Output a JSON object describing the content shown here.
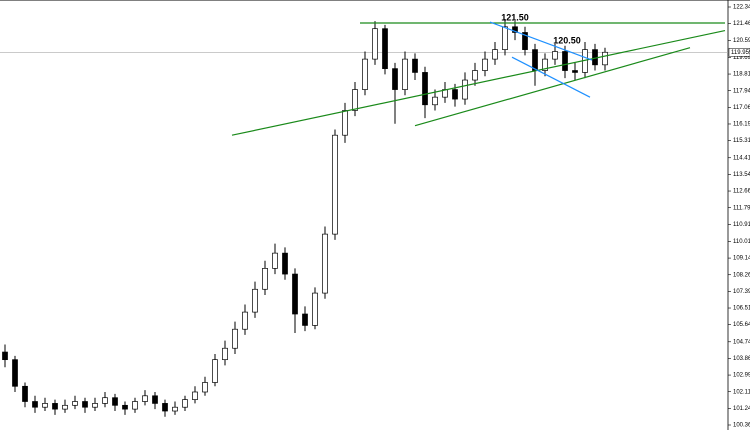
{
  "chart_data": {
    "type": "candlestick",
    "color": "#000000",
    "open": [
      104.2,
      103.8,
      102.4,
      101.6,
      101.3,
      101.5,
      101.2,
      101.4,
      101.6,
      101.3,
      101.5,
      101.8,
      101.4,
      101.2,
      101.6,
      101.9,
      101.5,
      101.1,
      101.3,
      101.7,
      102.1,
      102.6,
      103.8,
      104.4,
      105.4,
      106.3,
      107.5,
      108.6,
      109.4,
      108.3,
      106.2,
      105.6,
      107.3,
      110.4,
      115.6,
      116.9,
      118.0,
      119.6,
      121.2,
      119.1,
      118.0,
      119.6,
      118.9,
      117.2,
      117.6,
      118.0,
      117.5,
      118.5,
      119.0,
      119.6,
      120.1,
      121.3,
      121.0,
      120.1,
      119.0,
      119.6,
      120.0,
      119.0,
      118.9,
      120.1,
      119.3
    ],
    "high": [
      104.6,
      104.0,
      102.6,
      101.9,
      101.8,
      101.7,
      101.7,
      101.9,
      101.8,
      101.8,
      102.1,
      102.0,
      101.6,
      101.8,
      102.2,
      102.1,
      101.7,
      101.6,
      101.9,
      102.4,
      102.9,
      104.1,
      104.8,
      105.8,
      106.7,
      107.9,
      109.0,
      109.9,
      109.7,
      108.6,
      106.6,
      107.6,
      110.8,
      115.9,
      117.3,
      118.4,
      120.0,
      121.6,
      121.4,
      119.4,
      120.0,
      119.9,
      119.2,
      118.0,
      118.4,
      118.3,
      118.9,
      119.4,
      120.0,
      120.5,
      121.7,
      121.6,
      121.3,
      120.4,
      119.9,
      120.4,
      120.3,
      119.4,
      120.5,
      120.4,
      120.2
    ],
    "low": [
      103.4,
      102.1,
      101.3,
      101.0,
      101.1,
      100.9,
      101.0,
      101.2,
      101.0,
      101.1,
      101.3,
      101.1,
      100.9,
      101.0,
      101.4,
      101.2,
      100.8,
      100.9,
      101.1,
      101.5,
      101.9,
      102.4,
      103.5,
      104.1,
      105.1,
      106.0,
      107.2,
      108.3,
      108.0,
      105.2,
      105.3,
      105.4,
      107.0,
      110.1,
      115.2,
      116.6,
      117.7,
      119.3,
      118.8,
      116.2,
      117.7,
      118.5,
      116.5,
      116.9,
      117.3,
      117.1,
      117.2,
      118.2,
      118.7,
      119.3,
      119.8,
      120.6,
      119.8,
      118.2,
      118.7,
      119.3,
      118.6,
      118.5,
      118.6,
      119.0,
      119.0
    ],
    "close": [
      103.8,
      102.4,
      101.6,
      101.3,
      101.5,
      101.2,
      101.4,
      101.6,
      101.3,
      101.5,
      101.8,
      101.4,
      101.2,
      101.6,
      101.9,
      101.5,
      101.1,
      101.3,
      101.7,
      102.1,
      102.6,
      103.8,
      104.4,
      105.4,
      106.3,
      107.5,
      108.6,
      109.4,
      108.3,
      106.2,
      105.6,
      107.3,
      110.4,
      115.6,
      116.9,
      118.0,
      119.6,
      121.2,
      119.1,
      118.0,
      119.6,
      118.9,
      117.2,
      117.6,
      118.0,
      117.5,
      118.5,
      119.0,
      119.6,
      120.1,
      121.3,
      121.0,
      120.1,
      119.0,
      119.6,
      120.0,
      119.0,
      118.9,
      120.1,
      119.3,
      119.96
    ],
    "ylim": [
      100.365,
      122.34
    ],
    "yticks": [
      {
        "value": 122.34,
        "label": "122.340"
      },
      121.465,
      {
        "value": 120.59,
        "label": "120.590"
      },
      {
        "value": 119.69,
        "label": "119.690"
      },
      118.815,
      {
        "value": 117.94,
        "label": "117.940"
      },
      117.065,
      {
        "value": 116.19,
        "label": "116.190"
      },
      115.315,
      114.415,
      {
        "value": 113.54,
        "label": "113.540"
      },
      112.665,
      {
        "value": 111.79,
        "label": "111.790"
      },
      110.915,
      110.015,
      {
        "value": 109.14,
        "label": "109.140"
      },
      108.265,
      {
        "value": 107.39,
        "label": "107.390"
      },
      106.515,
      {
        "value": 105.64,
        "label": "105.640"
      },
      {
        "value": 104.74,
        "label": "104.740"
      },
      103.865,
      {
        "value": 102.99,
        "label": "102.990"
      },
      102.115,
      {
        "value": 101.24,
        "label": "101.240"
      },
      100.365
    ],
    "last_price": {
      "value": 119.959,
      "label": "119.959"
    },
    "trendlines": [
      {
        "color": "#1a8a1a",
        "x": [
          35.5,
          72
        ],
        "y": [
          121.5,
          121.5
        ]
      },
      {
        "color": "#1a8a1a",
        "x": [
          22.7,
          72
        ],
        "y": [
          115.6,
          121.1
        ]
      },
      {
        "color": "#1a8a1a",
        "x": [
          41,
          68.5
        ],
        "y": [
          116.1,
          120.2
        ]
      },
      {
        "color": "#1e90ff",
        "x": [
          48.5,
          58.7
        ],
        "y": [
          121.55,
          119.55
        ]
      },
      {
        "color": "#1e90ff",
        "x": [
          50.7,
          58.5
        ],
        "y": [
          119.7,
          117.6
        ]
      }
    ],
    "annotations": [
      {
        "text": "121.50",
        "x": 51,
        "y": 121.75
      },
      {
        "text": "120.50",
        "x": 56.2,
        "y": 120.55
      }
    ]
  }
}
